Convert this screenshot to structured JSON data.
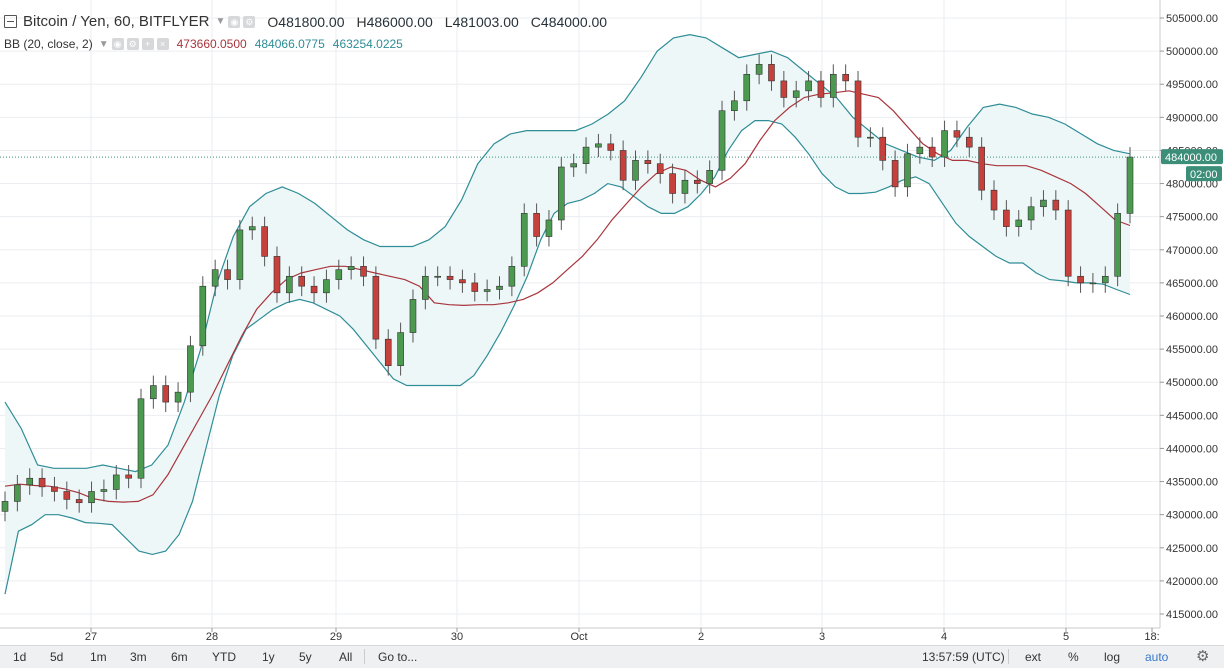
{
  "legend": {
    "symbol": "Bitcoin / Yen, 60, BITFLYER",
    "ohlc": [
      {
        "label": "O",
        "value": "481800.00"
      },
      {
        "label": "H",
        "value": "486000.00"
      },
      {
        "label": "L",
        "value": "481003.00"
      },
      {
        "label": "C",
        "value": "484000.00"
      }
    ],
    "bb_label": "BB (20, close, 2)",
    "bb_values": [
      "473660.0500",
      "484066.0775",
      "463254.0225"
    ]
  },
  "toolbar": {
    "intervals": [
      "1d",
      "5d",
      "1m",
      "3m",
      "6m",
      "YTD",
      "1y",
      "5y",
      "All"
    ],
    "goto": "Go to...",
    "time": "13:57:59 (UTC)",
    "ext": "ext",
    "percent": "%",
    "log": "log",
    "auto": "auto"
  },
  "colors": {
    "up": "#4c9a4f",
    "down": "#c6403c",
    "band": "#2e8d96",
    "band_fill": "#eef7f8",
    "basis": "#a8353c",
    "grid": "#ebedf0",
    "price_label_bg": "#3c8e79"
  },
  "chart_data": {
    "type": "candlestick",
    "title": "Bitcoin / Yen, 60, BITFLYER",
    "y_ticks": [
      "415000.00",
      "420000.00",
      "425000.00",
      "430000.00",
      "435000.00",
      "440000.00",
      "445000.00",
      "450000.00",
      "455000.00",
      "460000.00",
      "465000.00",
      "470000.00",
      "475000.00",
      "480000.00",
      "485000.00",
      "490000.00",
      "495000.00",
      "500000.00",
      "505000.00"
    ],
    "ylim": [
      413000,
      506000
    ],
    "x_ticks": [
      "27",
      "28",
      "29",
      "30",
      "Oct",
      "2",
      "3",
      "4",
      "5",
      "18:"
    ],
    "last_price": "484000.00",
    "countdown": "02:00",
    "close": [
      432000,
      434500,
      435500,
      434200,
      433500,
      432300,
      431800,
      433500,
      433800,
      436000,
      435500,
      447500,
      449500,
      447000,
      448500,
      455500,
      464500,
      467000,
      465500,
      473000,
      473500,
      469000,
      463500,
      466000,
      464500,
      463500,
      465500,
      467000,
      467500,
      466000,
      456500,
      452500,
      457500,
      462500,
      466000,
      466000,
      465500,
      465000,
      463700,
      464000,
      464500,
      467500,
      475500,
      472000,
      474500,
      482500,
      483000,
      485500,
      486000,
      485000,
      480500,
      483500,
      483000,
      481500,
      478500,
      480500,
      480000,
      482000,
      491000,
      492500,
      496500,
      498000,
      495500,
      493000,
      494000,
      495500,
      493000,
      496500,
      495500,
      487000,
      487000,
      483500,
      479500,
      484500,
      485500,
      484000,
      488000,
      487000,
      485500,
      479000,
      476000,
      473500,
      474500,
      476500,
      477500,
      476000,
      466000,
      465000,
      465000,
      466000,
      475500,
      484000
    ],
    "bb_basis": [
      434300,
      434600,
      434400,
      434300,
      433900,
      433300,
      432400,
      432000,
      431900,
      432000,
      433000,
      436000,
      440000,
      444000,
      448000,
      452500,
      457000,
      461000,
      463500,
      465500,
      466500,
      467000,
      467500,
      467500,
      467000,
      466500,
      466000,
      465500,
      464500,
      462000,
      461700,
      461600,
      461700,
      461700,
      462000,
      462500,
      463500,
      465000,
      467000,
      469000,
      471500,
      474500,
      477000,
      479500,
      481500,
      482500,
      482000,
      480500,
      479500,
      480800,
      483000,
      486500,
      489500,
      491500,
      493000,
      493500,
      493700,
      494000,
      493500,
      493000,
      491000,
      488500,
      486000,
      484500,
      483500,
      483500,
      483000,
      482700,
      482700,
      482700,
      482000,
      481000,
      480000,
      478500,
      476500,
      474500,
      473660
    ],
    "bb_upper": [
      447000,
      443000,
      437500,
      437000,
      437000,
      437000,
      437500,
      437000,
      436500,
      437500,
      440500,
      447000,
      455000,
      465000,
      472000,
      476500,
      478500,
      479500,
      478500,
      477000,
      475000,
      473000,
      471500,
      470500,
      470500,
      470500,
      471500,
      473500,
      477500,
      483000,
      486000,
      487500,
      488000,
      488000,
      488000,
      488000,
      489000,
      490500,
      492500,
      496000,
      500000,
      502000,
      502500,
      502000,
      500500,
      499000,
      499500,
      500000,
      499000,
      497000,
      495000,
      493000,
      490000,
      488000,
      486000,
      485000,
      484000,
      483500,
      485000,
      488500,
      491500,
      492000,
      491500,
      490500,
      490000,
      489000,
      487500,
      486000,
      485000,
      484500
    ],
    "bb_lower": [
      418000,
      427500,
      428500,
      430000,
      430000,
      429500,
      428800,
      428700,
      428500,
      426500,
      424500,
      424000,
      424500,
      427000,
      432000,
      440000,
      448000,
      454000,
      458000,
      459500,
      461000,
      462000,
      462500,
      462000,
      461000,
      460000,
      458000,
      455500,
      453000,
      450500,
      449500,
      449500,
      449500,
      449500,
      449500,
      451000,
      454000,
      457500,
      461500,
      466000,
      471500,
      475500,
      477000,
      477500,
      478500,
      480000,
      479500,
      478000,
      476500,
      475500,
      475500,
      476500,
      478500,
      481000,
      485000,
      488000,
      489500,
      489500,
      489000,
      487000,
      484500,
      481500,
      479500,
      478500,
      478500,
      478700,
      479500,
      480500,
      481000,
      480000,
      477000,
      474000,
      472000,
      470500,
      469000,
      468000,
      468000,
      466500,
      465500,
      465300,
      465000,
      465000,
      464800,
      464000,
      463254
    ]
  }
}
